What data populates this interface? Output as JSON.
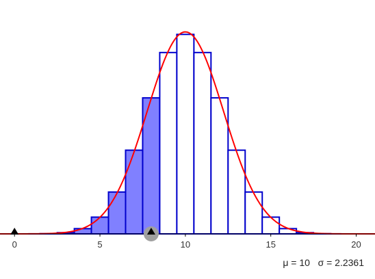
{
  "chart_data": {
    "type": "bar",
    "x": [
      0,
      1,
      2,
      3,
      4,
      5,
      6,
      7,
      8,
      9,
      10,
      11,
      12,
      13,
      14,
      15,
      16,
      17,
      18,
      19,
      20
    ],
    "values": [
      1e-06,
      1.9e-05,
      0.000181,
      0.001087,
      0.004621,
      0.014786,
      0.036964,
      0.073929,
      0.120134,
      0.160179,
      0.176197,
      0.160179,
      0.120134,
      0.073929,
      0.036964,
      0.014786,
      0.004621,
      0.001087,
      0.000181,
      1.9e-05,
      1e-06
    ],
    "shaded_through": 8,
    "curve": {
      "type": "normal",
      "mean": 10,
      "sd": 2.2361
    },
    "xlim": [
      -0.85,
      21.1
    ],
    "ylim": [
      0,
      0.18
    ],
    "xticks": [
      0,
      5,
      10,
      15,
      20
    ],
    "xtick_labels": [
      "0",
      "5",
      "10",
      "15",
      "20"
    ],
    "slider_left": 0,
    "slider_right": 8,
    "stats": {
      "mu": "μ = 10",
      "sigma": "σ = 2.2361"
    },
    "colors": {
      "bar_stroke": "#0000cc",
      "bar_fill_shaded": "#8080ff",
      "bar_fill": "#ffffff",
      "curve": "#ff0000",
      "axis": "#000000",
      "handle": "#a0a0a0"
    }
  }
}
